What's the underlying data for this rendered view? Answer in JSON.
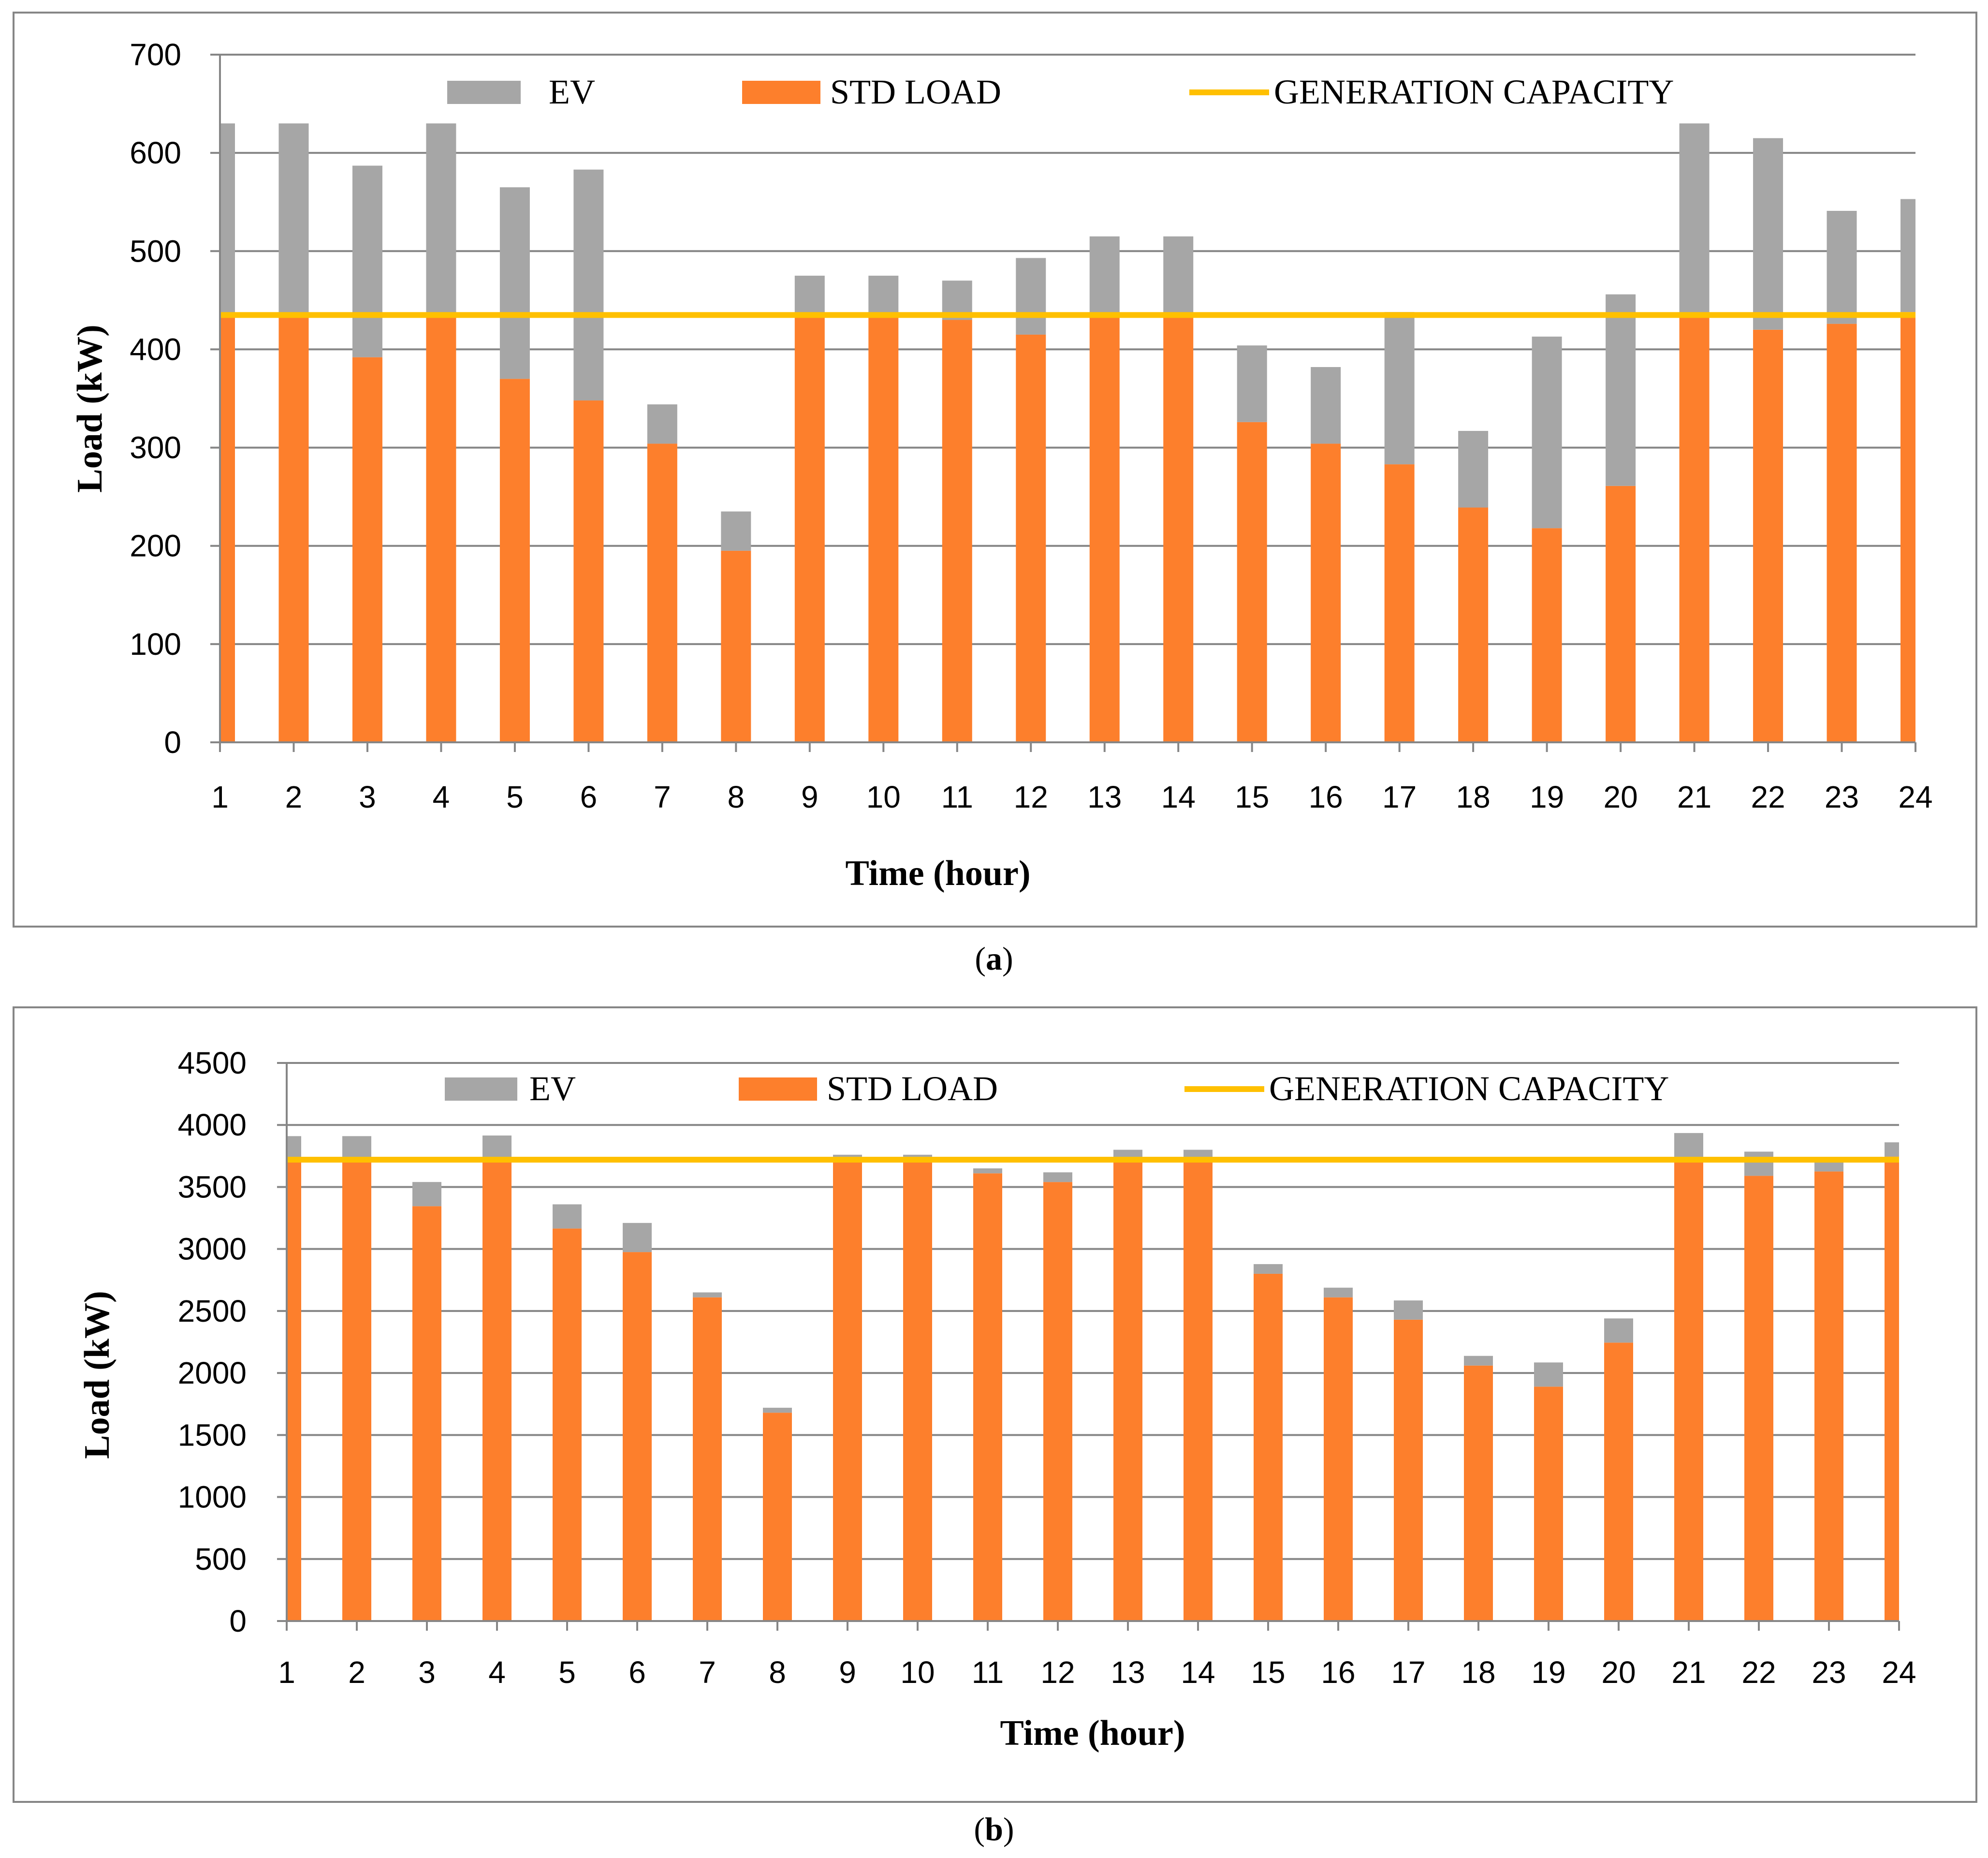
{
  "colors": {
    "ev": "#A6A6A6",
    "std_load": "#FD7F2C",
    "generation_capacity": "#FFC000",
    "axis": "#868686",
    "gridline": "#868686",
    "frame": "#868686"
  },
  "chart_data": [
    {
      "type": "bar",
      "stacked": true,
      "caption": "a",
      "xlabel": "Time (hour)",
      "ylabel": "Load (kW)",
      "ylim": [
        0,
        700
      ],
      "yticks": [
        "0",
        "100",
        "200",
        "300",
        "400",
        "500",
        "600",
        "700"
      ],
      "categories": [
        "1",
        "2",
        "3",
        "4",
        "5",
        "6",
        "7",
        "8",
        "9",
        "10",
        "11",
        "12",
        "13",
        "14",
        "15",
        "16",
        "17",
        "18",
        "19",
        "20",
        "21",
        "22",
        "23",
        "24"
      ],
      "grid": true,
      "legend_position": "top",
      "series": [
        {
          "name": "EV",
          "type": "bar",
          "values": [
            195,
            195,
            195,
            195,
            195,
            235,
            40,
            40,
            40,
            40,
            40,
            78,
            80,
            80,
            78,
            78,
            155,
            78,
            195,
            195,
            195,
            195,
            115,
            115
          ]
        },
        {
          "name": "STD LOAD",
          "type": "bar",
          "values": [
            435,
            435,
            392,
            435,
            370,
            348,
            304,
            195,
            435,
            435,
            430,
            415,
            435,
            435,
            326,
            304,
            283,
            239,
            218,
            261,
            435,
            420,
            426,
            438
          ]
        },
        {
          "name": "GENERATION CAPACITY",
          "type": "line",
          "values": [
            435,
            435,
            435,
            435,
            435,
            435,
            435,
            435,
            435,
            435,
            435,
            435,
            435,
            435,
            435,
            435,
            435,
            435,
            435,
            435,
            435,
            435,
            435,
            435
          ]
        }
      ]
    },
    {
      "type": "bar",
      "stacked": true,
      "caption": "b",
      "xlabel": "Time (hour)",
      "ylabel": "Load (kW)",
      "ylim": [
        0,
        4500
      ],
      "yticks": [
        "0",
        "500",
        "1000",
        "1500",
        "2000",
        "2500",
        "3000",
        "3500",
        "4000",
        "4500"
      ],
      "categories": [
        "1",
        "2",
        "3",
        "4",
        "5",
        "6",
        "7",
        "8",
        "9",
        "10",
        "11",
        "12",
        "13",
        "14",
        "15",
        "16",
        "17",
        "18",
        "19",
        "20",
        "21",
        "22",
        "23",
        "24"
      ],
      "grid": true,
      "legend_position": "top",
      "series": [
        {
          "name": "EV",
          "type": "bar",
          "values": [
            190,
            190,
            195,
            195,
            195,
            235,
            40,
            40,
            40,
            40,
            40,
            78,
            80,
            80,
            78,
            78,
            155,
            78,
            195,
            195,
            195,
            195,
            115,
            115
          ]
        },
        {
          "name": "STD LOAD",
          "type": "bar",
          "values": [
            3720,
            3720,
            3345,
            3720,
            3165,
            2975,
            2610,
            1680,
            3720,
            3720,
            3610,
            3540,
            3720,
            3720,
            2800,
            2610,
            2430,
            2060,
            1890,
            2245,
            3740,
            3590,
            3625,
            3745
          ]
        },
        {
          "name": "GENERATION CAPACITY",
          "type": "line",
          "values": [
            3720,
            3720,
            3720,
            3720,
            3720,
            3720,
            3720,
            3720,
            3720,
            3720,
            3720,
            3720,
            3720,
            3720,
            3720,
            3720,
            3720,
            3720,
            3720,
            3720,
            3720,
            3720,
            3720,
            3720
          ]
        }
      ]
    }
  ]
}
